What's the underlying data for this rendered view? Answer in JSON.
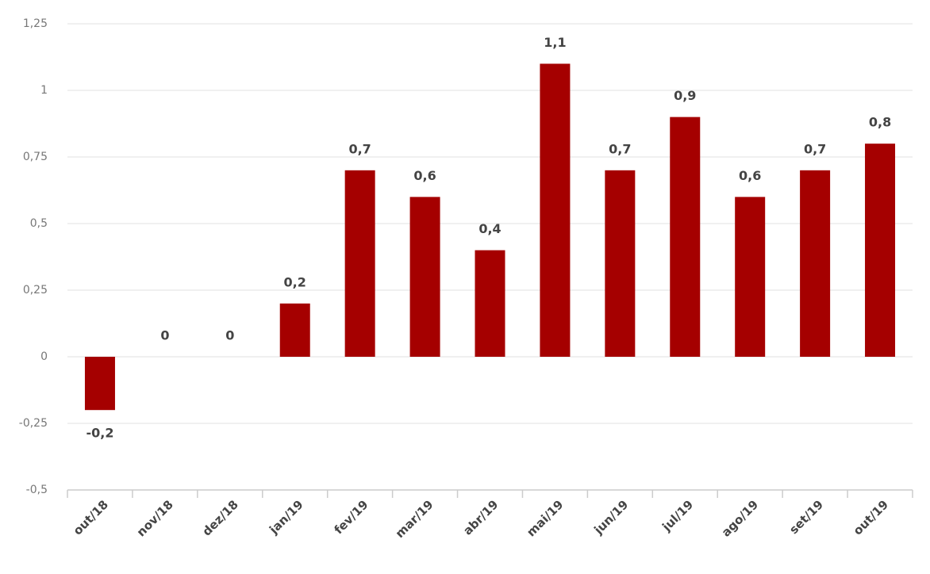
{
  "chart_data": {
    "type": "bar",
    "categories": [
      "out/18",
      "nov/18",
      "dez/18",
      "jan/19",
      "fev/19",
      "mar/19",
      "abr/19",
      "mai/19",
      "jun/19",
      "jul/19",
      "ago/19",
      "set/19",
      "out/19"
    ],
    "values": [
      -0.2,
      0,
      0,
      0.2,
      0.7,
      0.6,
      0.4,
      1.1,
      0.7,
      0.9,
      0.6,
      0.7,
      0.8
    ],
    "value_labels": [
      "-0,2",
      "0",
      "0",
      "0,2",
      "0,7",
      "0,6",
      "0,4",
      "1,1",
      "0,7",
      "0,9",
      "0,6",
      "0,7",
      "0,8"
    ],
    "color": "#a50000",
    "ylim": [
      -0.5,
      1.25
    ],
    "yticks": [
      {
        "value": -0.5,
        "label": "-0,5"
      },
      {
        "value": -0.25,
        "label": "-0,25"
      },
      0,
      {
        "value": 0.25,
        "label": "0,25"
      },
      {
        "value": 0.5,
        "label": "0,5"
      },
      {
        "value": 0.75,
        "label": "0,75"
      },
      1,
      {
        "value": 1.25,
        "label": "1,25"
      }
    ],
    "grid": true
  }
}
